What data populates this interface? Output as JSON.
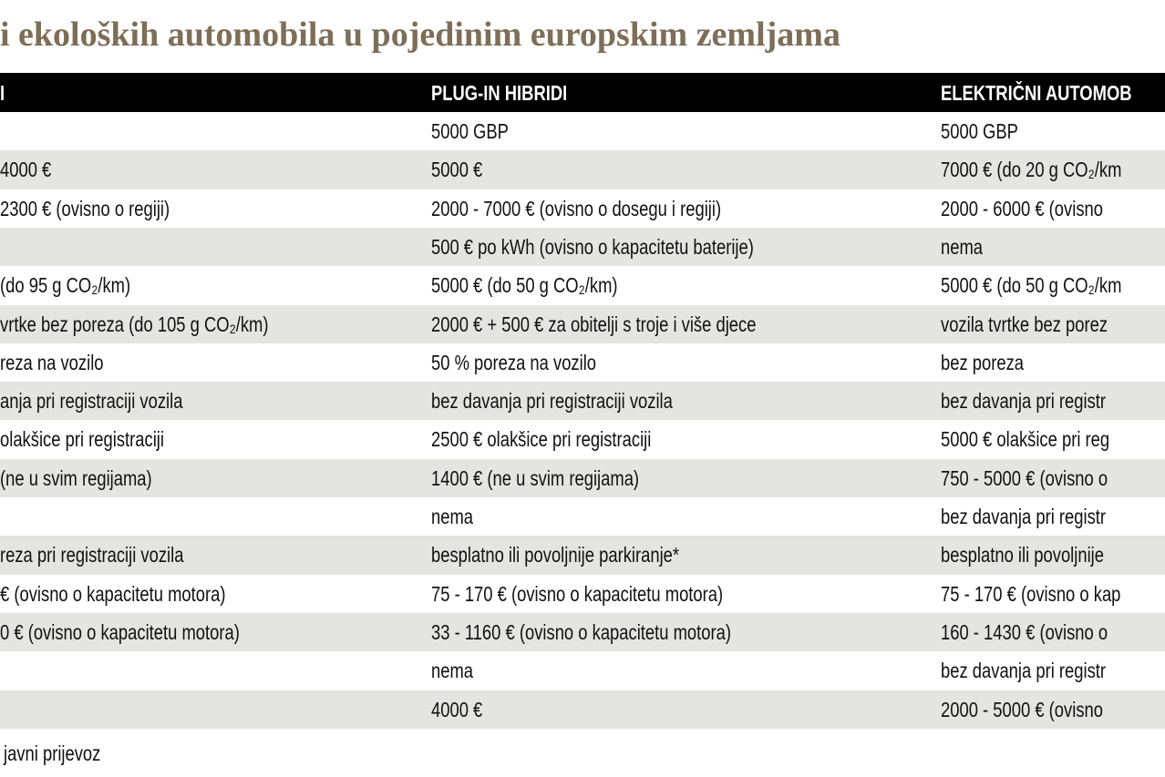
{
  "title": "i ekoloških automobila u pojedinim europskim zemljama",
  "table": {
    "header": [
      "I",
      "PLUG-IN HIBRIDI",
      "ELEKTRIČNI AUTOMOB"
    ],
    "rows": [
      [
        null,
        "5000 GBP",
        "5000 GBP"
      ],
      [
        "4000 €",
        "5000 €",
        "7000 € (do 20 g CO₂/km"
      ],
      [
        "2300 € (ovisno o regiji)",
        "2000 - 7000 €  (ovisno o dosegu i regiji)",
        "2000 - 6000 € (ovisno"
      ],
      [
        null,
        "500 € po kWh (ovisno o kapacitetu baterije)",
        "nema"
      ],
      [
        "(do 95 g CO₂/km)",
        "5000 € (do 50 g CO₂/km)",
        "5000 € (do 50 g CO₂/km"
      ],
      [
        "vrtke bez poreza (do 105 g CO₂/km)",
        "2000 € + 500 € za obitelji s troje i više djece",
        "vozila tvrtke bez porez"
      ],
      [
        "reza na vozilo",
        "50 % poreza na vozilo",
        "bez poreza"
      ],
      [
        "anja pri registraciji vozila",
        "bez davanja pri registraciji vozila",
        "bez davanja pri registr"
      ],
      [
        "olakšice pri registraciji",
        "2500 € olakšice pri registraciji",
        "5000 € olakšice pri reg"
      ],
      [
        "(ne u svim regijama)",
        "1400 € (ne u svim regijama)",
        "750 - 5000 € (ovisno o"
      ],
      [
        null,
        "nema",
        "bez davanja pri registr"
      ],
      [
        "reza pri registraciji vozila",
        "besplatno ili povoljnije parkiranje*",
        "besplatno ili povoljnije"
      ],
      [
        "€ (ovisno o kapacitetu motora)",
        "75 - 170 € (ovisno o kapacitetu motora)",
        "75 - 170 € (ovisno o kap"
      ],
      [
        "0 € (ovisno o kapacitetu motora)",
        "33 - 1160 € (ovisno o kapacitetu motora)",
        "160 - 1430 € (ovisno o"
      ],
      [
        null,
        "nema",
        "bez davanja pri registr"
      ],
      [
        null,
        "4000 €",
        "2000 - 5000 € (ovisno"
      ]
    ]
  },
  "footnote": "javni prijevoz"
}
